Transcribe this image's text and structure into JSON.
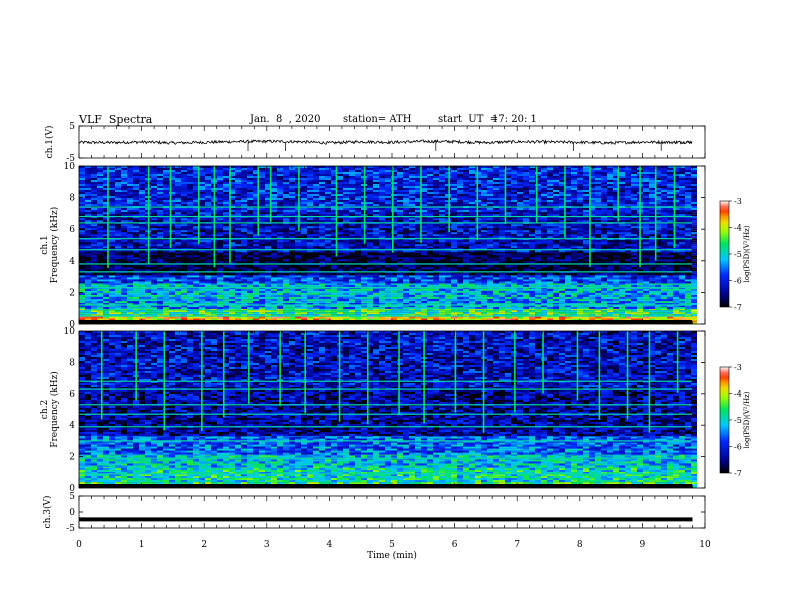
{
  "header": {
    "title": "VLF  Spectra",
    "date": "Jan.  8  , 2020",
    "station": "station= ATH",
    "start_ut_label": "start  UT  =",
    "start_ut_value": "17: 20: 1"
  },
  "colors": {
    "trace": "#000000",
    "spectrogram_background": "#0b1f9a"
  },
  "chart_data": [
    {
      "type": "line",
      "ylabel": "ch.1(V)",
      "xlim": [
        0,
        10
      ],
      "ylim": [
        -5,
        5
      ],
      "yticks": [
        "5",
        "-5"
      ],
      "series": [
        {
          "x": [
            0,
            0.5,
            1,
            1.5,
            2,
            2.5,
            3,
            3.5,
            4,
            4.5,
            5,
            5.5,
            6,
            6.5,
            7,
            7.5,
            8,
            8.5,
            9,
            9.5,
            9.8
          ],
          "values": [
            -0.1,
            -0.2,
            0,
            -0.3,
            -0.1,
            0.1,
            0.2,
            0.1,
            -0.3,
            0.1,
            -0.1,
            0.2,
            0.1,
            -0.2,
            0.1,
            0,
            -0.1,
            -0.3,
            0,
            -0.1,
            0
          ]
        }
      ]
    },
    {
      "type": "heatmap",
      "ylabel": "Frequency (kHz)",
      "channel_label": "ch.1",
      "xlim": [
        0,
        10
      ],
      "ylim": [
        0,
        10
      ],
      "yticks": [
        "0",
        "2",
        "4",
        "6",
        "8",
        "10"
      ],
      "colorbar": {
        "label": "log(PSD)(V²/Hz)",
        "ticks": [
          "-3",
          "-4",
          "-5",
          "-6",
          "-7"
        ],
        "range": [
          -7,
          -3
        ]
      },
      "bands_khz": [
        {
          "from": 0,
          "to": 0.6,
          "level": -3.8
        },
        {
          "from": 0.6,
          "to": 1.0,
          "level": -4.6
        },
        {
          "from": 1.0,
          "to": 1.7,
          "level": -5.3
        },
        {
          "from": 1.7,
          "to": 2.6,
          "level": -5.2
        },
        {
          "from": 2.6,
          "to": 3.2,
          "level": -5.8
        },
        {
          "from": 3.2,
          "to": 4.6,
          "level": -6.8
        },
        {
          "from": 4.6,
          "to": 7.2,
          "level": -6.2
        },
        {
          "from": 7.2,
          "to": 10,
          "level": -6.0
        }
      ],
      "lines_khz": [
        0.5,
        1.2,
        2.3,
        3.3,
        3.8,
        4.7,
        5.4,
        6.4,
        6.8,
        7.4
      ],
      "transient_times_min": [
        0.45,
        1.1,
        1.45,
        1.9,
        2.15,
        2.4,
        2.85,
        3.05,
        3.5,
        4.1,
        4.55,
        5.0,
        5.45,
        5.9,
        6.35,
        6.8,
        7.3,
        7.75,
        8.15,
        8.6,
        8.95,
        9.2,
        9.5
      ]
    },
    {
      "type": "heatmap",
      "ylabel": "Frequency (kHz)",
      "channel_label": "ch.2",
      "xlim": [
        0,
        10
      ],
      "ylim": [
        0,
        10
      ],
      "yticks": [
        "0",
        "2",
        "4",
        "6",
        "8",
        "10"
      ],
      "colorbar": {
        "label": "log(PSD)(V²/Hz)",
        "ticks": [
          "-3",
          "-4",
          "-5",
          "-6",
          "-7"
        ],
        "range": [
          -7,
          -3
        ]
      },
      "bands_khz": [
        {
          "from": 0,
          "to": 0.5,
          "level": -4.6
        },
        {
          "from": 0.5,
          "to": 1.4,
          "level": -4.9
        },
        {
          "from": 1.4,
          "to": 2.2,
          "level": -5.1
        },
        {
          "from": 2.2,
          "to": 3.4,
          "level": -5.6
        },
        {
          "from": 3.4,
          "to": 6.5,
          "level": -6.4
        },
        {
          "from": 6.5,
          "to": 10,
          "level": -6.2
        }
      ],
      "lines_khz": [
        0.9,
        1.9,
        3.0,
        3.9,
        4.7,
        5.3,
        6.3,
        6.8
      ],
      "transient_times_min": [
        0.35,
        0.9,
        1.35,
        1.95,
        2.3,
        2.7,
        3.2,
        3.6,
        4.15,
        4.6,
        5.1,
        5.5,
        6.0,
        6.45,
        6.95,
        7.4,
        7.95,
        8.3,
        8.75,
        9.1,
        9.55
      ]
    },
    {
      "type": "line",
      "ylabel": "ch.3(V)",
      "xlabel": "Time  (min)",
      "xlim": [
        0,
        10
      ],
      "ylim": [
        -5,
        5
      ],
      "yticks": [
        "5",
        "0",
        "-5"
      ],
      "xticks": [
        "0",
        "1",
        "2",
        "3",
        "4",
        "5",
        "6",
        "7",
        "8",
        "9",
        "10"
      ],
      "series": [
        {
          "x": [
            0,
            9.8
          ],
          "values": [
            -2.3,
            -2.3
          ]
        }
      ]
    }
  ]
}
